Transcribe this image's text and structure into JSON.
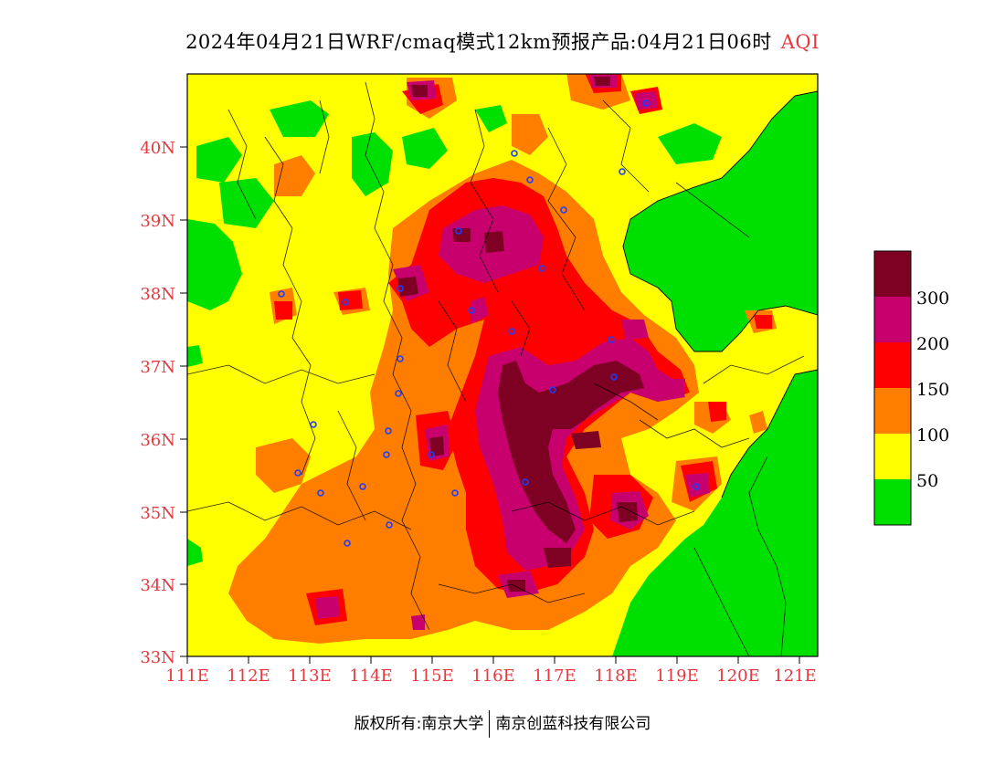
{
  "title": {
    "main": "2024年04月21日WRF/cmaq模式12km预报产品:04月21日06时",
    "variable": "AQI"
  },
  "map": {
    "lon_ticks": [
      "111E",
      "112E",
      "113E",
      "114E",
      "115E",
      "116E",
      "117E",
      "118E",
      "119E",
      "120E",
      "121E"
    ],
    "lat_ticks": [
      "40N",
      "39N",
      "38N",
      "37N",
      "36N",
      "35N",
      "34N",
      "33N"
    ],
    "lon_range": [
      111,
      121.3
    ],
    "lat_range": [
      33,
      40.95
    ]
  },
  "legend": {
    "labels": [
      "300",
      "200",
      "150",
      "100",
      "50"
    ],
    "bins": [
      {
        "min": 0,
        "max": 50,
        "color": "#00e000"
      },
      {
        "min": 50,
        "max": 100,
        "color": "#ffff00"
      },
      {
        "min": 100,
        "max": 150,
        "color": "#ff7e00"
      },
      {
        "min": 150,
        "max": 200,
        "color": "#ff0000"
      },
      {
        "min": 200,
        "max": 300,
        "color": "#c8006e"
      },
      {
        "min": 300,
        "max": 500,
        "color": "#7e0023"
      }
    ]
  },
  "footer": {
    "copyright": "版权所有:南京大学",
    "company": "南京创蓝科技有限公司"
  }
}
